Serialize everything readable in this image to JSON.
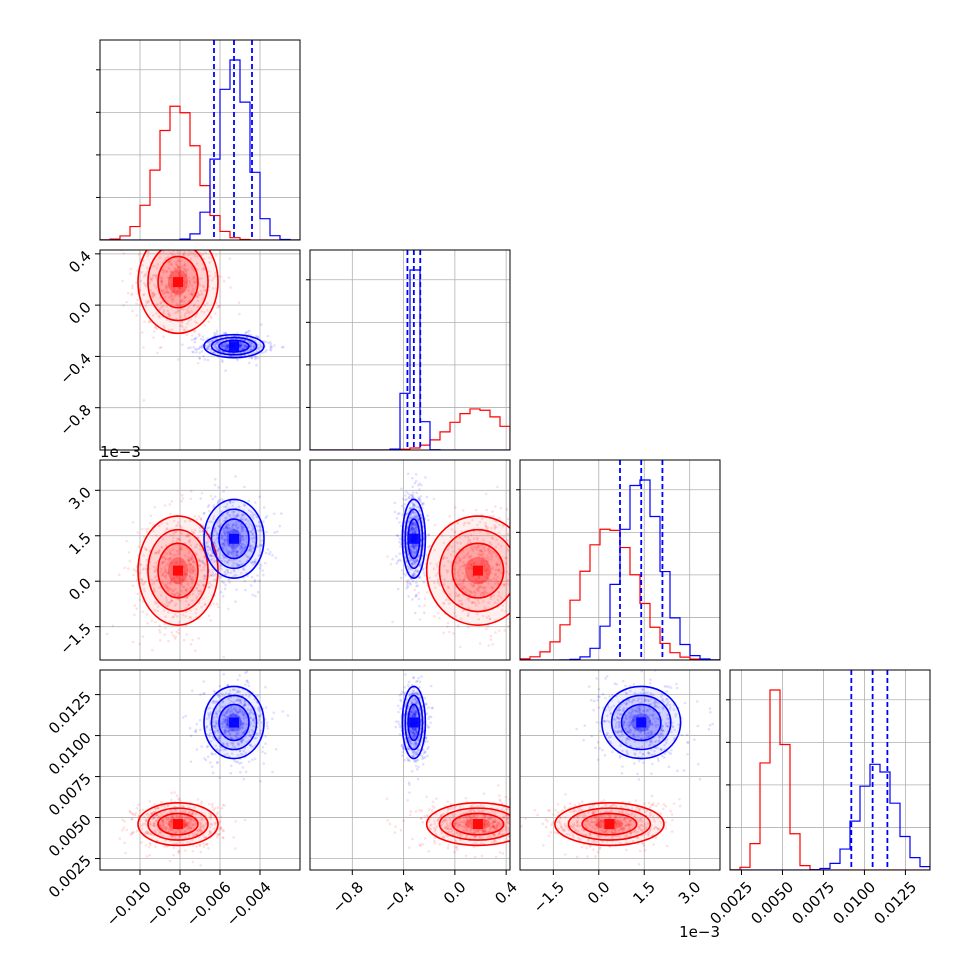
{
  "chart_data": {
    "type": "corner",
    "grid": true,
    "series": [
      {
        "name": "",
        "color": "#ff0000",
        "mean": [
          -0.0081,
          0.18,
          0.00035,
          0.0046
        ],
        "std": [
          0.001,
          0.2,
          0.0009,
          0.00065
        ]
      },
      {
        "name": "",
        "color": "#0000ff",
        "mean": [
          -0.0053,
          -0.32,
          0.0014,
          0.0108
        ],
        "std": [
          0.00075,
          0.045,
          0.00065,
          0.0011
        ]
      }
    ],
    "quantiles_series": 1,
    "quantiles": [
      [
        -0.0063,
        -0.0053,
        -0.0044
      ],
      [
        -0.37,
        -0.32,
        -0.27
      ],
      [
        0.0007,
        0.0014,
        0.0021
      ],
      [
        0.0092,
        0.0105,
        0.0114
      ]
    ],
    "axes": [
      {
        "range": [
          -0.012,
          -0.002
        ],
        "ticks": [
          -0.01,
          -0.008,
          -0.006,
          -0.004
        ],
        "tick_labels": [
          "−0.010",
          "−0.008",
          "−0.006",
          "−0.004"
        ],
        "offset": ""
      },
      {
        "range": [
          -1.13,
          0.43
        ],
        "ticks": [
          -0.8,
          -0.4,
          0.0,
          0.4
        ],
        "tick_labels": [
          "−0.8",
          "−0.4",
          "0.0",
          "0.4"
        ],
        "offset": ""
      },
      {
        "range": [
          -0.0026,
          0.004
        ],
        "ticks": [
          -0.0015,
          0.0,
          0.0015,
          0.003
        ],
        "tick_labels": [
          "−1.5",
          "0.0",
          "1.5",
          "3.0"
        ],
        "offset": "1e−3"
      },
      {
        "range": [
          0.0018,
          0.014
        ],
        "ticks": [
          0.0025,
          0.005,
          0.0075,
          0.01,
          0.0125
        ],
        "tick_labels": [
          "0.0025",
          "0.0050",
          "0.0075",
          "0.0100",
          "0.0125"
        ],
        "offset": ""
      }
    ]
  }
}
